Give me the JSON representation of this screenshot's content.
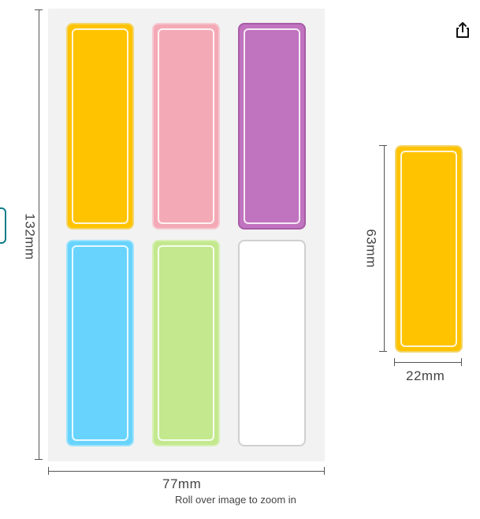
{
  "dimensions": {
    "sheet_height": "132mm",
    "sheet_width": "77mm",
    "label_height": "63mm",
    "label_width": "22mm"
  },
  "labels": [
    {
      "color": "#ffc300",
      "border": "#f4d56a"
    },
    {
      "color": "#f4aab6",
      "border": "#f7c9d1"
    },
    {
      "color": "#c073bf",
      "border": "#a95ca7"
    },
    {
      "color": "#68d4fd",
      "border": "#9fe3fc"
    },
    {
      "color": "#c3e88e",
      "border": "#d7f0b4"
    },
    {
      "color": "#ffffff",
      "border": "#cccccc"
    }
  ],
  "detail_label_color": "#ffc300",
  "zoom_hint": "Roll over image to zoom in",
  "icons": {
    "share": "share-icon"
  }
}
